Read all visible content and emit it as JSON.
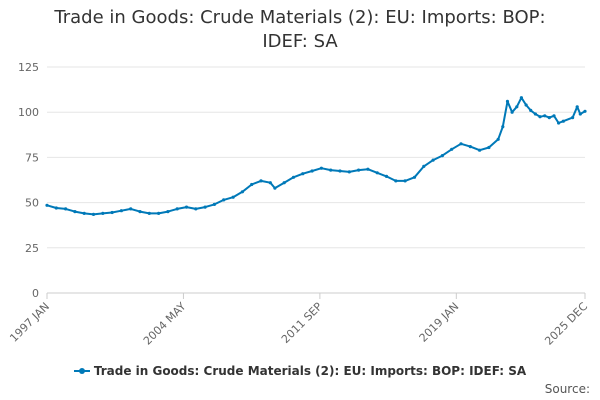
{
  "title_lines": [
    "Trade in Goods: Crude Materials (2): EU: Imports: BOP:",
    "IDEF: SA"
  ],
  "source_label": "Source:",
  "colors": {
    "series": "#0079b8",
    "grid": "#e6e6e6",
    "axis": "#cccccc",
    "text": "#666666"
  },
  "chart_data": {
    "type": "line",
    "title": "Trade in Goods: Crude Materials (2): EU: Imports: BOP: IDEF: SA",
    "x_range": [
      "1997-01",
      "2025-12"
    ],
    "x_ticks": [
      {
        "date": "1997-01",
        "label": "1997 JAN"
      },
      {
        "date": "2004-05",
        "label": "2004 MAY"
      },
      {
        "date": "2011-09",
        "label": "2011 SEP"
      },
      {
        "date": "2019-01",
        "label": "2019 JAN"
      },
      {
        "date": "2025-12",
        "label": "2025 DEC"
      }
    ],
    "y_ticks": [
      0,
      25,
      50,
      75,
      100,
      125
    ],
    "ylim": [
      0,
      125
    ],
    "grid": true,
    "legend_position": "bottom",
    "series": [
      {
        "name": "Trade in Goods: Crude Materials (2): EU: Imports: BOP: IDEF: SA",
        "points": [
          [
            "1997-01",
            48.5
          ],
          [
            "1997-07",
            47
          ],
          [
            "1998-01",
            46.5
          ],
          [
            "1998-07",
            45
          ],
          [
            "1999-01",
            44
          ],
          [
            "1999-07",
            43.5
          ],
          [
            "2000-01",
            44
          ],
          [
            "2000-07",
            44.5
          ],
          [
            "2001-01",
            45.5
          ],
          [
            "2001-07",
            46.5
          ],
          [
            "2002-01",
            45
          ],
          [
            "2002-07",
            44
          ],
          [
            "2003-01",
            44
          ],
          [
            "2003-07",
            45
          ],
          [
            "2004-01",
            46.5
          ],
          [
            "2004-07",
            47.5
          ],
          [
            "2005-01",
            46.5
          ],
          [
            "2005-07",
            47.5
          ],
          [
            "2006-01",
            49
          ],
          [
            "2006-07",
            51.5
          ],
          [
            "2007-01",
            53
          ],
          [
            "2007-07",
            56
          ],
          [
            "2008-01",
            60
          ],
          [
            "2008-07",
            62
          ],
          [
            "2009-01",
            61
          ],
          [
            "2009-04",
            58
          ],
          [
            "2009-10",
            61
          ],
          [
            "2010-04",
            64
          ],
          [
            "2010-10",
            66
          ],
          [
            "2011-04",
            67.5
          ],
          [
            "2011-10",
            69
          ],
          [
            "2012-04",
            68
          ],
          [
            "2012-10",
            67.5
          ],
          [
            "2013-04",
            67
          ],
          [
            "2013-10",
            68
          ],
          [
            "2014-04",
            68.5
          ],
          [
            "2014-10",
            66.5
          ],
          [
            "2015-04",
            64.5
          ],
          [
            "2015-10",
            62
          ],
          [
            "2016-04",
            62
          ],
          [
            "2016-10",
            64
          ],
          [
            "2017-04",
            70
          ],
          [
            "2017-10",
            73.5
          ],
          [
            "2018-04",
            76
          ],
          [
            "2018-10",
            79.5
          ],
          [
            "2019-04",
            82.5
          ],
          [
            "2019-10",
            81
          ],
          [
            "2020-04",
            79
          ],
          [
            "2020-10",
            80.5
          ],
          [
            "2021-04",
            85
          ],
          [
            "2021-07",
            92
          ],
          [
            "2021-10",
            106
          ],
          [
            "2022-01",
            100
          ],
          [
            "2022-04",
            103
          ],
          [
            "2022-07",
            108
          ],
          [
            "2022-10",
            104
          ],
          [
            "2023-01",
            101
          ],
          [
            "2023-04",
            99
          ],
          [
            "2023-07",
            97.5
          ],
          [
            "2023-10",
            98
          ],
          [
            "2024-01",
            97
          ],
          [
            "2024-04",
            98
          ],
          [
            "2024-07",
            94
          ],
          [
            "2024-10",
            95
          ],
          [
            "2025-04",
            97
          ],
          [
            "2025-07",
            103
          ],
          [
            "2025-09",
            99
          ],
          [
            "2025-12",
            100.5
          ]
        ]
      }
    ]
  }
}
